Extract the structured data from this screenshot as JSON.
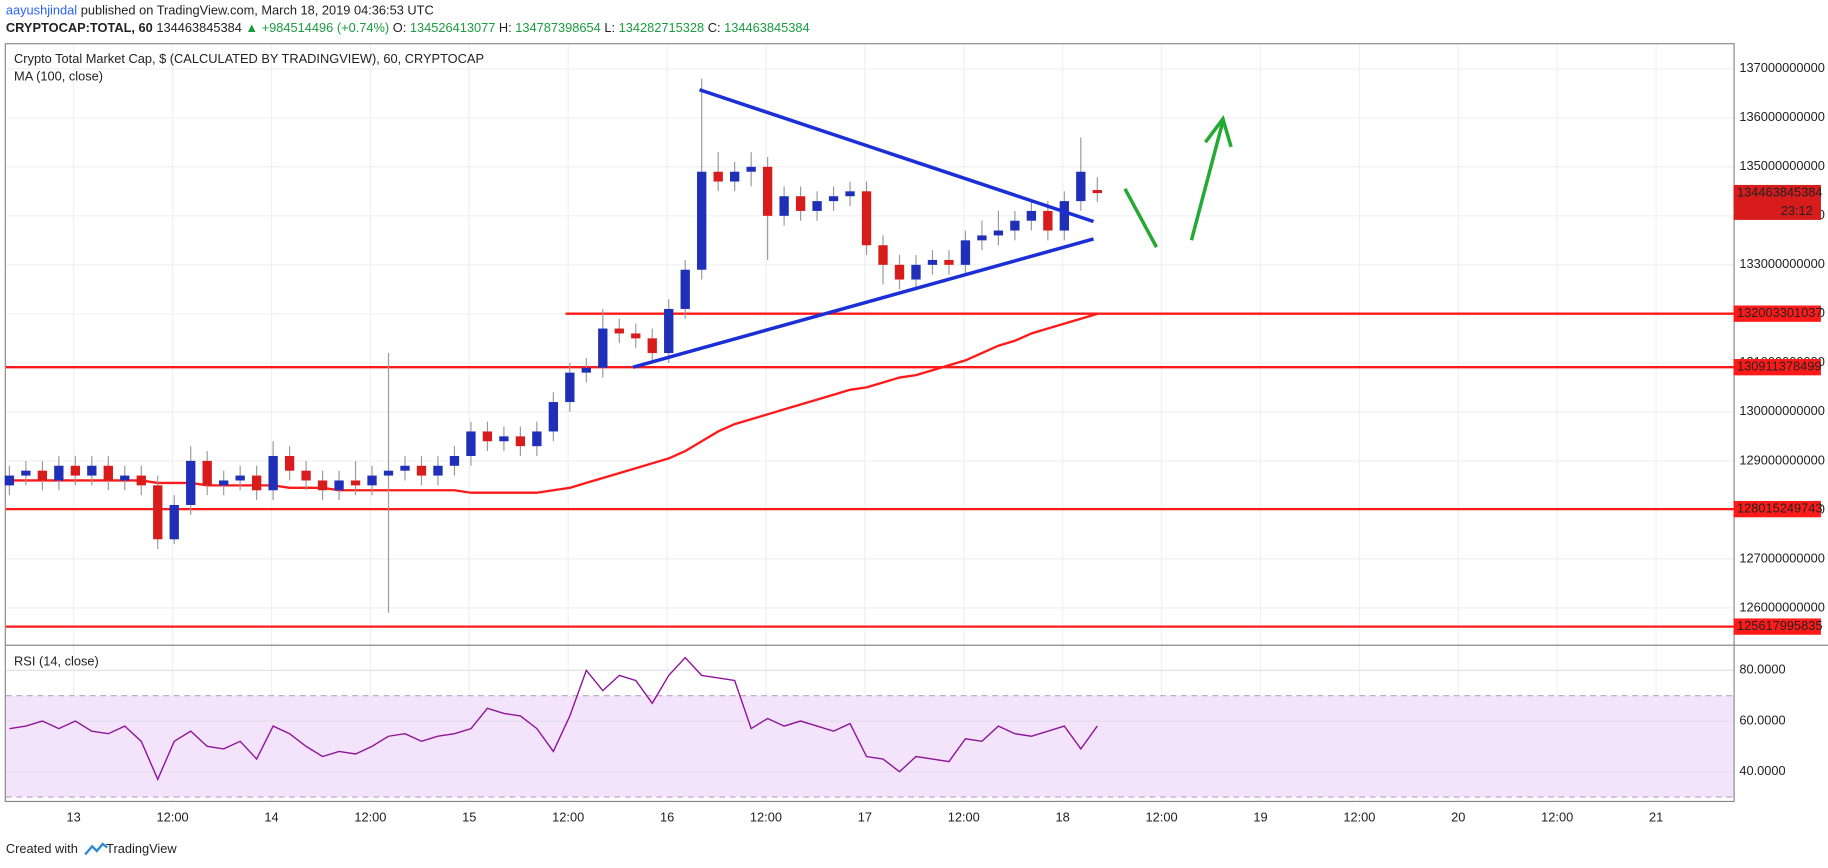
{
  "header": {
    "author": "aayushjindal",
    "published": "published on TradingView.com, March 18, 2019 04:36:53 UTC",
    "symbol": "CRYPTOCAP:TOTAL, 60",
    "change": "▲ +984514496 (+0.74%)",
    "open_label": "O:",
    "high_label": "H:",
    "low_label": "L:",
    "close_label": "C:"
  },
  "chart_data": {
    "type": "candlestick",
    "title": "Crypto Total Market Cap, $ (CALCULATED BY TRADINGVIEW), 60, CRYPTOCAP",
    "up_color": "#1f2fb8",
    "down_color": "#d81b1b",
    "grid": true,
    "candles": [
      [
        128500000000,
        128900000000,
        128300000000,
        128700000000
      ],
      [
        128700000000,
        129000000000,
        128500000000,
        128800000000
      ],
      [
        128800000000,
        129000000000,
        128400000000,
        128600000000
      ],
      [
        128600000000,
        129100000000,
        128400000000,
        128900000000
      ],
      [
        128900000000,
        129100000000,
        128500000000,
        128700000000
      ],
      [
        128700000000,
        129100000000,
        128500000000,
        128900000000
      ],
      [
        128900000000,
        129100000000,
        128400000000,
        128600000000
      ],
      [
        128600000000,
        128900000000,
        128400000000,
        128700000000
      ],
      [
        128700000000,
        128900000000,
        128300000000,
        128500000000
      ],
      [
        128500000000,
        128700000000,
        127200000000,
        127400000000
      ],
      [
        127400000000,
        128300000000,
        127300000000,
        128100000000
      ],
      [
        128100000000,
        129300000000,
        127900000000,
        129000000000
      ],
      [
        129000000000,
        129200000000,
        128300000000,
        128500000000
      ],
      [
        128500000000,
        128800000000,
        128300000000,
        128600000000
      ],
      [
        128600000000,
        128900000000,
        128400000000,
        128700000000
      ],
      [
        128700000000,
        128900000000,
        128200000000,
        128400000000
      ],
      [
        128400000000,
        129400000000,
        128200000000,
        129100000000
      ],
      [
        129100000000,
        129300000000,
        128600000000,
        128800000000
      ],
      [
        128800000000,
        129000000000,
        128400000000,
        128600000000
      ],
      [
        128600000000,
        128800000000,
        128200000000,
        128400000000
      ],
      [
        128400000000,
        128800000000,
        128200000000,
        128600000000
      ],
      [
        128600000000,
        129000000000,
        128300000000,
        128500000000
      ],
      [
        128500000000,
        128900000000,
        128300000000,
        128700000000
      ],
      [
        128700000000,
        131200000000,
        125900000000,
        128800000000
      ],
      [
        128800000000,
        129100000000,
        128600000000,
        128900000000
      ],
      [
        128900000000,
        129100000000,
        128500000000,
        128700000000
      ],
      [
        128700000000,
        129100000000,
        128500000000,
        128900000000
      ],
      [
        128900000000,
        129300000000,
        128700000000,
        129100000000
      ],
      [
        129100000000,
        129800000000,
        128900000000,
        129600000000
      ],
      [
        129600000000,
        129800000000,
        129200000000,
        129400000000
      ],
      [
        129400000000,
        129700000000,
        129200000000,
        129500000000
      ],
      [
        129500000000,
        129700000000,
        129100000000,
        129300000000
      ],
      [
        129300000000,
        129800000000,
        129100000000,
        129600000000
      ],
      [
        129600000000,
        130400000000,
        129400000000,
        130200000000
      ],
      [
        130200000000,
        131000000000,
        130000000000,
        130800000000
      ],
      [
        130800000000,
        131100000000,
        130600000000,
        130900000000
      ],
      [
        130900000000,
        132100000000,
        130700000000,
        131700000000
      ],
      [
        131700000000,
        131900000000,
        131400000000,
        131600000000
      ],
      [
        131600000000,
        131800000000,
        131300000000,
        131500000000
      ],
      [
        131500000000,
        131700000000,
        131000000000,
        131200000000
      ],
      [
        131200000000,
        132300000000,
        131000000000,
        132100000000
      ],
      [
        132100000000,
        133100000000,
        131900000000,
        132900000000
      ],
      [
        132900000000,
        136800000000,
        132700000000,
        134900000000
      ],
      [
        134900000000,
        135300000000,
        134500000000,
        134700000000
      ],
      [
        134700000000,
        135100000000,
        134500000000,
        134900000000
      ],
      [
        134900000000,
        135300000000,
        134600000000,
        135000000000
      ],
      [
        135000000000,
        135200000000,
        133100000000,
        134000000000
      ],
      [
        134000000000,
        134600000000,
        133800000000,
        134400000000
      ],
      [
        134400000000,
        134600000000,
        133900000000,
        134100000000
      ],
      [
        134100000000,
        134500000000,
        133900000000,
        134300000000
      ],
      [
        134300000000,
        134600000000,
        134100000000,
        134400000000
      ],
      [
        134400000000,
        134700000000,
        134200000000,
        134500000000
      ],
      [
        134500000000,
        134700000000,
        133200000000,
        133400000000
      ],
      [
        133400000000,
        133600000000,
        132600000000,
        133000000000
      ],
      [
        133000000000,
        133200000000,
        132500000000,
        132700000000
      ],
      [
        132700000000,
        133200000000,
        132500000000,
        133000000000
      ],
      [
        133000000000,
        133300000000,
        132800000000,
        133100000000
      ],
      [
        133100000000,
        133300000000,
        132800000000,
        133000000000
      ],
      [
        133000000000,
        133700000000,
        132800000000,
        133500000000
      ],
      [
        133500000000,
        133900000000,
        133300000000,
        133600000000
      ],
      [
        133600000000,
        134100000000,
        133400000000,
        133700000000
      ],
      [
        133700000000,
        134100000000,
        133500000000,
        133900000000
      ],
      [
        133900000000,
        134300000000,
        133700000000,
        134100000000
      ],
      [
        134100000000,
        134300000000,
        133500000000,
        133700000000
      ],
      [
        133700000000,
        134500000000,
        133500000000,
        134300000000
      ],
      [
        134300000000,
        135600000000,
        134100000000,
        134900000000
      ],
      [
        134526413077,
        134787398654,
        134282715328,
        134463845384
      ]
    ],
    "ma": {
      "name": "MA (100, close)",
      "color": "#ff1a1a",
      "values": [
        128600000000,
        128600000000,
        128600000000,
        128600000000,
        128600000000,
        128600000000,
        128600000000,
        128600000000,
        128600000000,
        128550000000,
        128550000000,
        128550000000,
        128500000000,
        128500000000,
        128500000000,
        128500000000,
        128500000000,
        128450000000,
        128450000000,
        128450000000,
        128400000000,
        128400000000,
        128400000000,
        128400000000,
        128400000000,
        128400000000,
        128400000000,
        128400000000,
        128350000000,
        128350000000,
        128350000000,
        128350000000,
        128350000000,
        128400000000,
        128450000000,
        128550000000,
        128650000000,
        128750000000,
        128850000000,
        128950000000,
        129050000000,
        129200000000,
        129400000000,
        129600000000,
        129750000000,
        129850000000,
        129950000000,
        130050000000,
        130150000000,
        130250000000,
        130350000000,
        130450000000,
        130500000000,
        130600000000,
        130700000000,
        130750000000,
        130850000000,
        130950000000,
        131050000000,
        131200000000,
        131350000000,
        131450000000,
        131600000000,
        131700000000,
        131800000000,
        131900000000,
        132000000000
      ]
    },
    "levels": [
      132003301037,
      130911378499,
      128015249743,
      125617995835
    ],
    "level_color": "#ff1a1a",
    "countdown": "23:12",
    "ylim": [
      125250000000,
      137500000000
    ],
    "yticks": [
      126000000000,
      127000000000,
      128000000000,
      129000000000,
      130000000000,
      131000000000,
      132000000000,
      133000000000,
      134000000000,
      135000000000,
      136000000000,
      137000000000
    ],
    "xticks": [
      "13",
      "12:00",
      "14",
      "12:00",
      "15",
      "12:00",
      "16",
      "12:00",
      "17",
      "12:00",
      "18",
      "12:00",
      "19",
      "12:00",
      "20",
      "12:00",
      "21"
    ],
    "rsi": {
      "name": "RSI (14, close)",
      "color": "#8e1599",
      "values": [
        57,
        58,
        60,
        57,
        60,
        56,
        55,
        58,
        52,
        37,
        52,
        56,
        50,
        49,
        52,
        45,
        58,
        55,
        50,
        46,
        48,
        47,
        50,
        54,
        55,
        52,
        54,
        55,
        57,
        65,
        63,
        62,
        57,
        48,
        62,
        80,
        72,
        78,
        76,
        67,
        78,
        85,
        78,
        77,
        76,
        57,
        61,
        58,
        60,
        58,
        56,
        59,
        46,
        45,
        40,
        46,
        45,
        44,
        53,
        52,
        58,
        55,
        54,
        56,
        58,
        49,
        58
      ],
      "ylim": [
        28.5,
        88.3
      ],
      "band": [
        30,
        70
      ],
      "yticks": [
        {
          "value": 40,
          "label": "40.0000"
        },
        {
          "value": 60,
          "label": "60.0000"
        },
        {
          "value": 80,
          "label": "80.0000"
        }
      ]
    }
  },
  "footer": {
    "created": "Created with",
    "brand": "TradingView"
  }
}
